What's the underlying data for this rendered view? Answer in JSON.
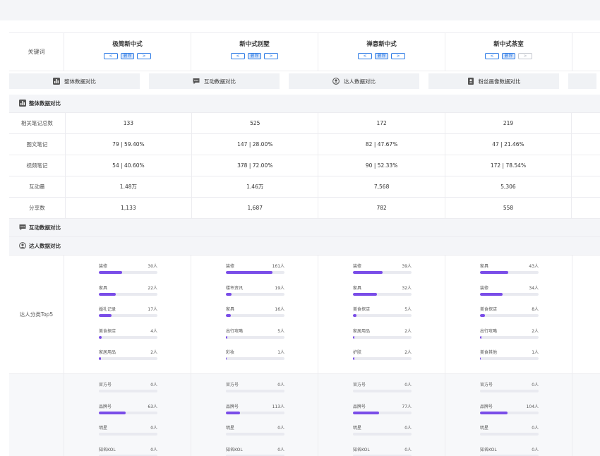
{
  "keywords": {
    "label": "关键词",
    "columns": [
      {
        "name": "极简新中式",
        "left_disabled": false,
        "right_disabled": false
      },
      {
        "name": "新中式别墅",
        "left_disabled": false,
        "right_disabled": false
      },
      {
        "name": "禅意新中式",
        "left_disabled": false,
        "right_disabled": false
      },
      {
        "name": "新中式茶室",
        "left_disabled": false,
        "right_disabled": true
      }
    ],
    "prev_glyph": "<",
    "next_glyph": ">",
    "delete_label": "删除"
  },
  "tabs": [
    {
      "label": "整体数据对比",
      "icon": "bar-chart-icon"
    },
    {
      "label": "互动数据对比",
      "icon": "chat-icon"
    },
    {
      "label": "达人数据对比",
      "icon": "user-icon"
    },
    {
      "label": "粉丝画像数据对比",
      "icon": "profile-icon"
    }
  ],
  "sections": {
    "overall": {
      "title": "整体数据对比"
    },
    "interaction": {
      "title": "互动数据对比"
    },
    "creator": {
      "title": "达人数据对比"
    }
  },
  "overall_rows": [
    {
      "label": "相关笔记总数",
      "values": [
        "133",
        "525",
        "172",
        "219"
      ]
    },
    {
      "label": "图文笔记",
      "values": [
        "79 | 59.40%",
        "147 | 28.00%",
        "82 | 47.67%",
        "47 | 21.46%"
      ]
    },
    {
      "label": "视频笔记",
      "values": [
        "54 | 40.60%",
        "378 | 72.00%",
        "90 | 52.33%",
        "172 | 78.54%"
      ]
    },
    {
      "label": "互动量",
      "values": [
        "1.48万",
        "1.46万",
        "7,568",
        "5,306"
      ]
    },
    {
      "label": "分享数",
      "values": [
        "1,133",
        "1,687",
        "782",
        "558"
      ]
    }
  ],
  "creator_top5": {
    "label": "达人分类Top5",
    "columns": [
      [
        {
          "name": "装修",
          "value": "30人",
          "ratio": 0.4
        },
        {
          "name": "家具",
          "value": "22人",
          "ratio": 0.29
        },
        {
          "name": "婚礼记录",
          "value": "17人",
          "ratio": 0.22
        },
        {
          "name": "美食探店",
          "value": "4人",
          "ratio": 0.05
        },
        {
          "name": "家居用品",
          "value": "2人",
          "ratio": 0.03
        }
      ],
      [
        {
          "name": "装修",
          "value": "161人",
          "ratio": 0.8
        },
        {
          "name": "楼市资讯",
          "value": "19人",
          "ratio": 0.1
        },
        {
          "name": "家具",
          "value": "16人",
          "ratio": 0.08
        },
        {
          "name": "出行攻略",
          "value": "5人",
          "ratio": 0.025
        },
        {
          "name": "彩妆",
          "value": "1人",
          "ratio": 0.01
        }
      ],
      [
        {
          "name": "装修",
          "value": "39人",
          "ratio": 0.5
        },
        {
          "name": "家具",
          "value": "32人",
          "ratio": 0.41
        },
        {
          "name": "美食探店",
          "value": "5人",
          "ratio": 0.064
        },
        {
          "name": "家居用品",
          "value": "2人",
          "ratio": 0.026
        },
        {
          "name": "护肤",
          "value": "2人",
          "ratio": 0.026
        }
      ],
      [
        {
          "name": "家具",
          "value": "43人",
          "ratio": 0.48
        },
        {
          "name": "装修",
          "value": "34人",
          "ratio": 0.38
        },
        {
          "name": "美食探店",
          "value": "8人",
          "ratio": 0.09
        },
        {
          "name": "出行攻略",
          "value": "2人",
          "ratio": 0.022
        },
        {
          "name": "美食其他",
          "value": "1人",
          "ratio": 0.011
        }
      ]
    ]
  },
  "creator_type": {
    "columns": [
      [
        {
          "name": "官方号",
          "value": "0人",
          "ratio": 0
        },
        {
          "name": "品牌号",
          "value": "63人",
          "ratio": 0.46
        },
        {
          "name": "明星",
          "value": "0人",
          "ratio": 0
        },
        {
          "name": "知名KOL",
          "value": "0人",
          "ratio": 0
        }
      ],
      [
        {
          "name": "官方号",
          "value": "0人",
          "ratio": 0
        },
        {
          "name": "品牌号",
          "value": "113人",
          "ratio": 0.24
        },
        {
          "name": "明星",
          "value": "0人",
          "ratio": 0
        },
        {
          "name": "知名KOL",
          "value": "0人",
          "ratio": 0
        }
      ],
      [
        {
          "name": "官方号",
          "value": "0人",
          "ratio": 0
        },
        {
          "name": "品牌号",
          "value": "77人",
          "ratio": 0.45
        },
        {
          "name": "明星",
          "value": "0人",
          "ratio": 0
        },
        {
          "name": "知名KOL",
          "value": "0人",
          "ratio": 0
        }
      ],
      [
        {
          "name": "官方号",
          "value": "0人",
          "ratio": 0
        },
        {
          "name": "品牌号",
          "value": "104人",
          "ratio": 0.47
        },
        {
          "name": "明星",
          "value": "0人",
          "ratio": 0
        },
        {
          "name": "知名KOL",
          "value": "0人",
          "ratio": 0
        }
      ]
    ]
  },
  "colors": {
    "accent": "#7a4de8",
    "link": "#2d7be5",
    "track": "#e9eaf0"
  }
}
